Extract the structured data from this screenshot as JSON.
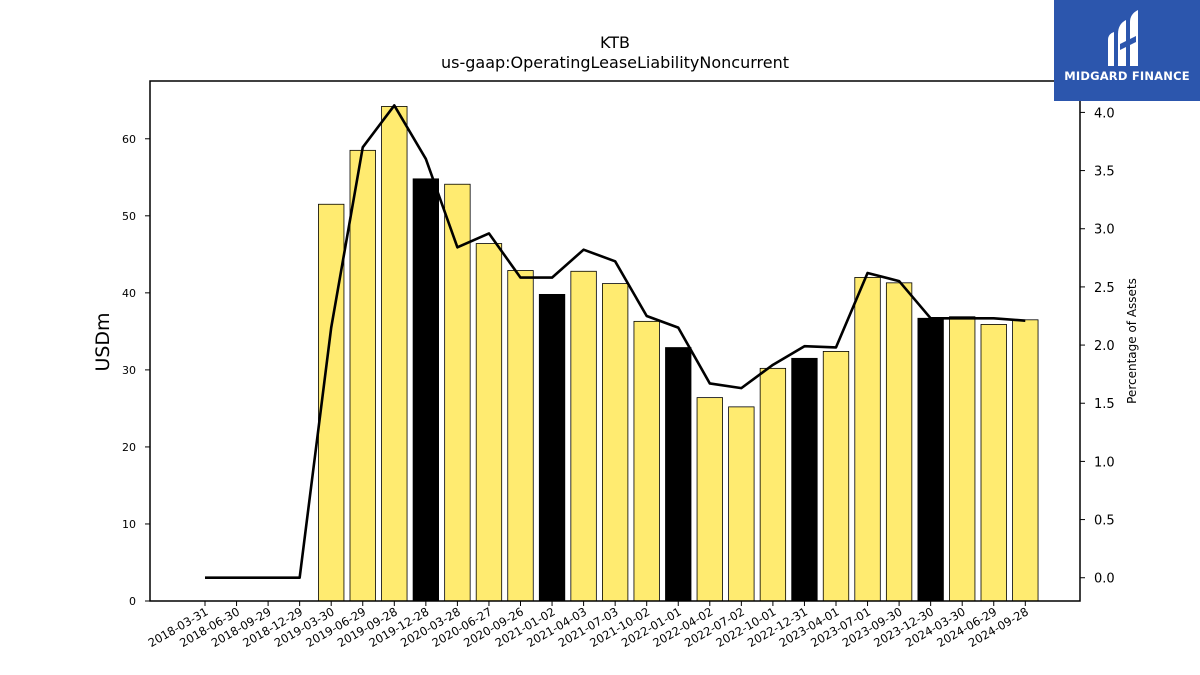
{
  "chart_data": {
    "type": "bar",
    "title": "KTB",
    "subtitle": "us-gaap:OperatingLeaseLiabilityNoncurrent",
    "ylabel": "USDm",
    "y2label": "Percentage of Assets",
    "ylim": [
      0,
      67.5
    ],
    "y2lim": [
      -0.2,
      4.27
    ],
    "yticks": [
      0,
      10,
      20,
      30,
      40,
      50,
      60
    ],
    "y2ticks": [
      "0.0",
      "0.5",
      "1.0",
      "1.5",
      "2.0",
      "2.5",
      "3.0",
      "3.5",
      "4.0"
    ],
    "categories": [
      "2018-03-31",
      "2018-06-30",
      "2018-09-29",
      "2018-12-29",
      "2019-03-30",
      "2019-06-29",
      "2019-09-28",
      "2019-12-28",
      "2020-03-28",
      "2020-06-27",
      "2020-09-26",
      "2021-01-02",
      "2021-04-03",
      "2021-07-03",
      "2021-10-02",
      "2022-01-01",
      "2022-04-02",
      "2022-07-02",
      "2022-10-01",
      "2022-12-31",
      "2023-04-01",
      "2023-07-01",
      "2023-09-30",
      "2023-12-30",
      "2024-03-30",
      "2024-06-29",
      "2024-09-28"
    ],
    "series": [
      {
        "type": "bar",
        "values": [
          null,
          null,
          null,
          null,
          51.5,
          58.5,
          64.2,
          54.8,
          54.1,
          46.4,
          42.9,
          39.8,
          42.8,
          41.2,
          36.3,
          32.9,
          26.4,
          25.2,
          30.2,
          31.5,
          32.4,
          42.0,
          41.3,
          36.7,
          36.9,
          35.9,
          36.5
        ],
        "highlight": [
          false,
          false,
          false,
          false,
          false,
          false,
          false,
          true,
          false,
          false,
          false,
          true,
          false,
          false,
          false,
          true,
          false,
          false,
          false,
          true,
          false,
          false,
          false,
          true,
          false,
          false,
          false
        ]
      },
      {
        "type": "line",
        "axis": "right",
        "values": [
          0.0,
          0.0,
          0.0,
          0.0,
          2.15,
          3.7,
          4.06,
          3.6,
          2.84,
          2.96,
          2.58,
          2.58,
          2.82,
          2.72,
          2.25,
          2.15,
          1.67,
          1.63,
          1.83,
          1.99,
          1.98,
          2.62,
          2.55,
          2.23,
          2.23,
          2.23,
          2.21
        ]
      }
    ],
    "colors": {
      "bar": "#ffeb70",
      "bar_highlight": "#000000",
      "line": "#000000"
    },
    "grid": false
  },
  "logo": {
    "text": "MIDGARD FINANCE"
  }
}
